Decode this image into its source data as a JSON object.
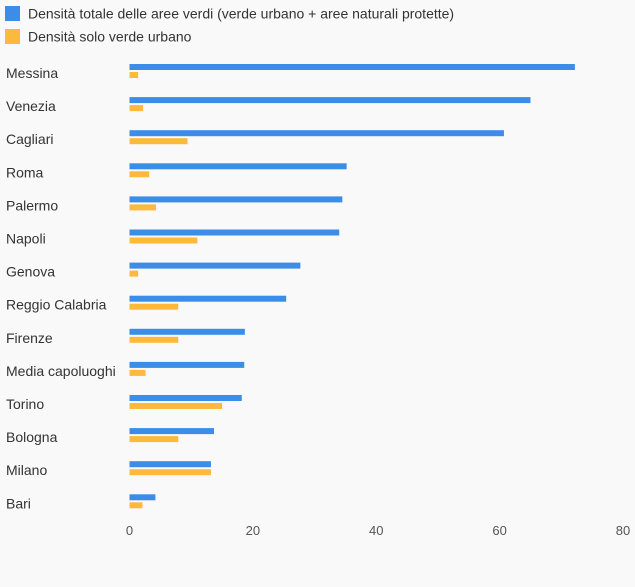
{
  "colors": {
    "series_total": "#3b8de8",
    "series_urban": "#fdb93b",
    "background": "#f9f9f9"
  },
  "chart_data": {
    "type": "bar",
    "orientation": "horizontal",
    "categories": [
      "Messina",
      "Venezia",
      "Cagliari",
      "Roma",
      "Palermo",
      "Napoli",
      "Genova",
      "Reggio Calabria",
      "Firenze",
      "Media capoluoghi",
      "Torino",
      "Bologna",
      "Milano",
      "Bari"
    ],
    "series": [
      {
        "name": "Densità totale delle aree verdi (verde urbano + aree naturali protette)",
        "color": "#3b8de8",
        "values": [
          72.2,
          65.0,
          60.7,
          35.2,
          34.5,
          34.0,
          27.7,
          25.4,
          18.7,
          18.6,
          18.2,
          13.7,
          13.2,
          4.2
        ]
      },
      {
        "name": "Densità solo verde urbano",
        "color": "#fdb93b",
        "values": [
          1.4,
          2.2,
          9.4,
          3.2,
          4.3,
          11.0,
          1.4,
          7.9,
          7.9,
          2.6,
          15.0,
          7.9,
          13.2,
          2.1
        ]
      }
    ],
    "xlim": [
      0,
      80
    ],
    "xticks": [
      0,
      20,
      40,
      60,
      80
    ],
    "grid": false,
    "legend_position": "top-left"
  }
}
